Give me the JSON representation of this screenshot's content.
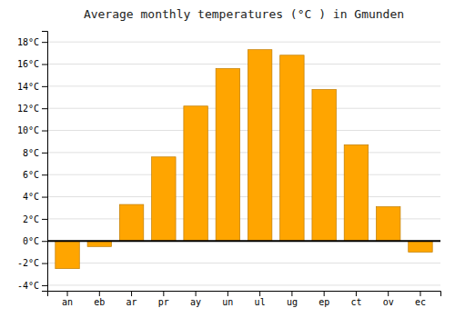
{
  "chart_data": {
    "type": "bar",
    "title": "Average monthly temperatures (°C ) in Gmunden",
    "categories": [
      "an",
      "eb",
      "ar",
      "pr",
      "ay",
      "un",
      "ul",
      "ug",
      "ep",
      "ct",
      "ov",
      "ec"
    ],
    "values": [
      -2.5,
      -0.5,
      3.3,
      7.6,
      12.2,
      15.6,
      17.3,
      16.8,
      13.7,
      8.7,
      3.1,
      -1.0
    ],
    "color": "#FFA500",
    "ylim": [
      -4.5,
      19
    ],
    "yticks": [
      {
        "value": -4,
        "label": "-4°C"
      },
      {
        "value": -2,
        "label": "-2°C"
      },
      {
        "value": 0,
        "label": "0°C"
      },
      {
        "value": 2,
        "label": "2°C"
      },
      {
        "value": 4,
        "label": "4°C"
      },
      {
        "value": 6,
        "label": "6°C"
      },
      {
        "value": 8,
        "label": "8°C"
      },
      {
        "value": 10,
        "label": "10°C"
      },
      {
        "value": 12,
        "label": "12°C"
      },
      {
        "value": 14,
        "label": "14°C"
      },
      {
        "value": 16,
        "label": "16°C"
      },
      {
        "value": 18,
        "label": "18°C"
      }
    ],
    "grid": true
  }
}
